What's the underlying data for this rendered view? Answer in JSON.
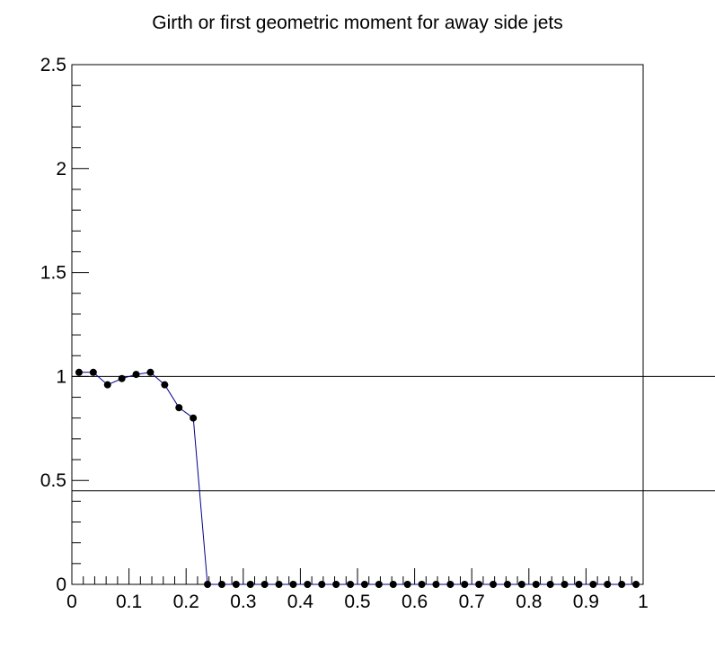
{
  "chart_data": {
    "type": "line",
    "title": "Girth or first geometric moment for away side jets",
    "xlabel": "",
    "ylabel": "",
    "xlim": [
      0,
      1
    ],
    "ylim": [
      0,
      2.5
    ],
    "x_tick_labels": [
      "0",
      "0.1",
      "0.2",
      "0.3",
      "0.4",
      "0.5",
      "0.6",
      "0.7",
      "0.8",
      "0.9",
      "1"
    ],
    "y_tick_labels": [
      "0",
      "0.5",
      "1",
      "1.5",
      "2",
      "2.5"
    ],
    "reference_lines": [
      1.0,
      0.45
    ],
    "line_color": "#00008b",
    "marker_color": "#000000",
    "grid": false,
    "series": [
      {
        "x": [
          0.0125,
          0.0375,
          0.0625,
          0.0875,
          0.1125,
          0.1375,
          0.1625,
          0.1875,
          0.2125,
          0.2375,
          0.2625,
          0.2875,
          0.3125,
          0.3375,
          0.3625,
          0.3875,
          0.4125,
          0.4375,
          0.4625,
          0.4875,
          0.5125,
          0.5375,
          0.5625,
          0.5875,
          0.6125,
          0.6375,
          0.6625,
          0.6875,
          0.7125,
          0.7375,
          0.7625,
          0.7875,
          0.8125,
          0.8375,
          0.8625,
          0.8875,
          0.9125,
          0.9375,
          0.9625,
          0.9875
        ],
        "values": [
          1.02,
          1.02,
          0.96,
          0.99,
          1.01,
          1.02,
          0.96,
          0.85,
          0.8,
          0,
          0,
          0,
          0,
          0,
          0,
          0,
          0,
          0,
          0,
          0,
          0,
          0,
          0,
          0,
          0,
          0,
          0,
          0,
          0,
          0,
          0,
          0,
          0,
          0,
          0,
          0,
          0,
          0,
          0,
          0
        ]
      }
    ]
  }
}
